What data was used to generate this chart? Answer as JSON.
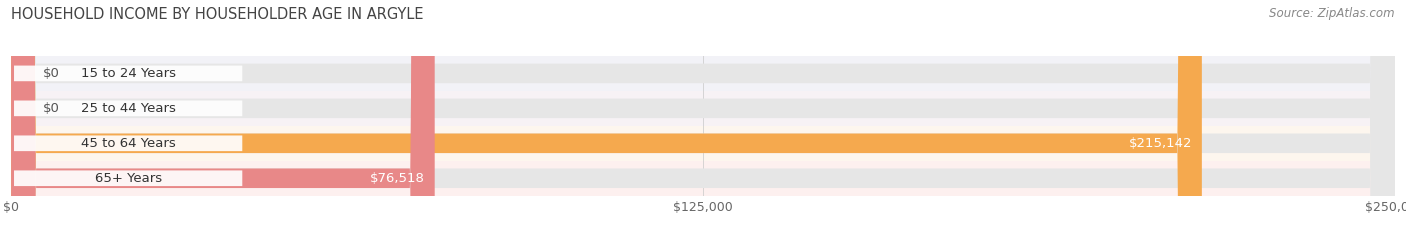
{
  "title": "HOUSEHOLD INCOME BY HOUSEHOLDER AGE IN ARGYLE",
  "source": "Source: ZipAtlas.com",
  "categories": [
    "15 to 24 Years",
    "25 to 44 Years",
    "45 to 64 Years",
    "65+ Years"
  ],
  "values": [
    0,
    0,
    215142,
    76518
  ],
  "bar_colors": [
    "#a8acd8",
    "#f098b0",
    "#f5a94e",
    "#e88888"
  ],
  "bar_bg_color": "#e6e6e6",
  "value_labels": [
    "$0",
    "$0",
    "$215,142",
    "$76,518"
  ],
  "label_colors_inside": [
    "#555555",
    "#555555",
    "#ffffff",
    "#555555"
  ],
  "label_colors_outside": [
    "#555555",
    "#555555",
    "#555555",
    "#555555"
  ],
  "xlim": [
    0,
    250000
  ],
  "xticks": [
    0,
    125000,
    250000
  ],
  "xtick_labels": [
    "$0",
    "$125,000",
    "$250,000"
  ],
  "title_fontsize": 10.5,
  "label_fontsize": 9.5,
  "tick_fontsize": 9,
  "source_fontsize": 8.5,
  "bar_height": 0.56,
  "row_colors": [
    "#f0f0f5",
    "#f7f0f5",
    "#fff8f0",
    "#fff0f0"
  ],
  "grid_color": "#cccccc",
  "label_box_color": "white",
  "small_bar_width": 3800
}
